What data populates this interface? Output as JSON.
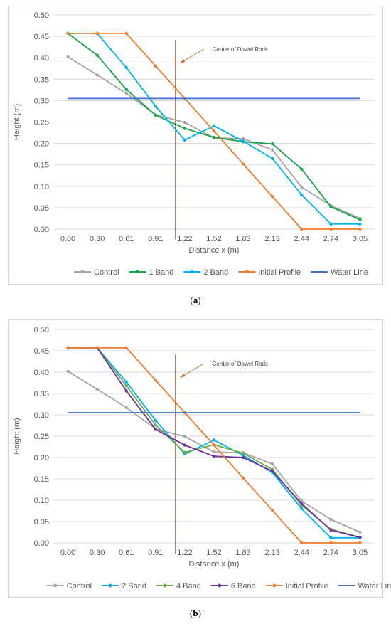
{
  "colors": {
    "Control": "#a5a5a5",
    "1 Band": "#1aa34a",
    "2 Band": "#00b0f0",
    "4 Band": "#70ad47",
    "6 Band": "#7030a0",
    "Initial Profile": "#ed7d31",
    "Water Line": "#4472c4",
    "annotation": "#c0703a",
    "grid": "#d9d9d9"
  },
  "chart_data": [
    {
      "type": "line",
      "caption": "a",
      "xlabel": "Distance x (m)",
      "ylabel": "Height (m)",
      "categories": [
        "0.00",
        "0.30",
        "0.61",
        "0.91",
        "1.22",
        "1.52",
        "1.83",
        "2.13",
        "2.44",
        "2.74",
        "3.05"
      ],
      "x": [
        0.0,
        0.3,
        0.61,
        0.91,
        1.22,
        1.52,
        1.83,
        2.13,
        2.44,
        2.74,
        3.05
      ],
      "ylim": [
        0,
        0.5
      ],
      "yticks": [
        "0.00",
        "0.05",
        "0.10",
        "0.15",
        "0.20",
        "0.25",
        "0.30",
        "0.35",
        "0.40",
        "0.45",
        "0.50"
      ],
      "grid": true,
      "legend_position": "bottom",
      "annotation": {
        "text": "Center of Dowel Rods",
        "x": 1.12
      },
      "series": [
        {
          "name": "Control",
          "markers": true,
          "values": [
            0.402,
            0.36,
            0.317,
            0.267,
            0.249,
            0.213,
            0.211,
            0.185,
            0.098,
            0.055,
            0.025
          ]
        },
        {
          "name": "1 Band",
          "markers": true,
          "values": [
            0.457,
            0.406,
            0.326,
            0.266,
            0.235,
            0.214,
            0.204,
            0.199,
            0.14,
            0.052,
            0.022
          ]
        },
        {
          "name": "2 Band",
          "markers": true,
          "values": [
            0.457,
            0.457,
            0.377,
            0.287,
            0.208,
            0.241,
            0.205,
            0.165,
            0.08,
            0.012,
            0.012
          ]
        },
        {
          "name": "Initial Profile",
          "markers": true,
          "values": [
            0.457,
            0.457,
            0.457,
            0.381,
            0.305,
            0.229,
            0.152,
            0.076,
            0.0,
            0.0,
            0.0
          ]
        },
        {
          "name": "Water Line",
          "markers": false,
          "values": [
            0.305,
            0.305,
            0.305,
            0.305,
            0.305,
            0.305,
            0.305,
            0.305,
            0.305,
            0.305,
            0.305
          ]
        }
      ]
    },
    {
      "type": "line",
      "caption": "b",
      "xlabel": "Distance x (m)",
      "ylabel": "Height (m)",
      "categories": [
        "0.00",
        "0.30",
        "0.61",
        "0.91",
        "1.22",
        "1.52",
        "1.83",
        "2.13",
        "2.44",
        "2.74",
        "3.05"
      ],
      "x": [
        0.0,
        0.3,
        0.61,
        0.91,
        1.22,
        1.52,
        1.83,
        2.13,
        2.44,
        2.74,
        3.05
      ],
      "ylim": [
        0,
        0.5
      ],
      "yticks": [
        "0.00",
        "0.05",
        "0.10",
        "0.15",
        "0.20",
        "0.25",
        "0.30",
        "0.35",
        "0.40",
        "0.45",
        "0.50"
      ],
      "grid": true,
      "legend_position": "bottom",
      "annotation": {
        "text": "Center of Dowel Rods",
        "x": 1.12
      },
      "series": [
        {
          "name": "Control",
          "markers": true,
          "values": [
            0.402,
            0.36,
            0.317,
            0.267,
            0.249,
            0.213,
            0.211,
            0.185,
            0.098,
            0.055,
            0.025
          ]
        },
        {
          "name": "2 Band",
          "markers": true,
          "values": [
            0.457,
            0.457,
            0.377,
            0.287,
            0.208,
            0.241,
            0.205,
            0.165,
            0.08,
            0.012,
            0.012
          ]
        },
        {
          "name": "4 Band",
          "markers": true,
          "values": [
            0.457,
            0.457,
            0.368,
            0.276,
            0.212,
            0.23,
            0.21,
            0.172,
            0.088,
            0.032,
            0.013
          ]
        },
        {
          "name": "6 Band",
          "markers": true,
          "values": [
            0.457,
            0.457,
            0.356,
            0.266,
            0.229,
            0.203,
            0.2,
            0.168,
            0.092,
            0.03,
            0.013
          ]
        },
        {
          "name": "Initial Profile",
          "markers": true,
          "values": [
            0.457,
            0.457,
            0.457,
            0.381,
            0.305,
            0.229,
            0.152,
            0.076,
            0.0,
            0.0,
            0.0
          ]
        },
        {
          "name": "Water Line",
          "markers": false,
          "values": [
            0.305,
            0.305,
            0.305,
            0.305,
            0.305,
            0.305,
            0.305,
            0.305,
            0.305,
            0.305,
            0.305
          ]
        }
      ]
    }
  ]
}
